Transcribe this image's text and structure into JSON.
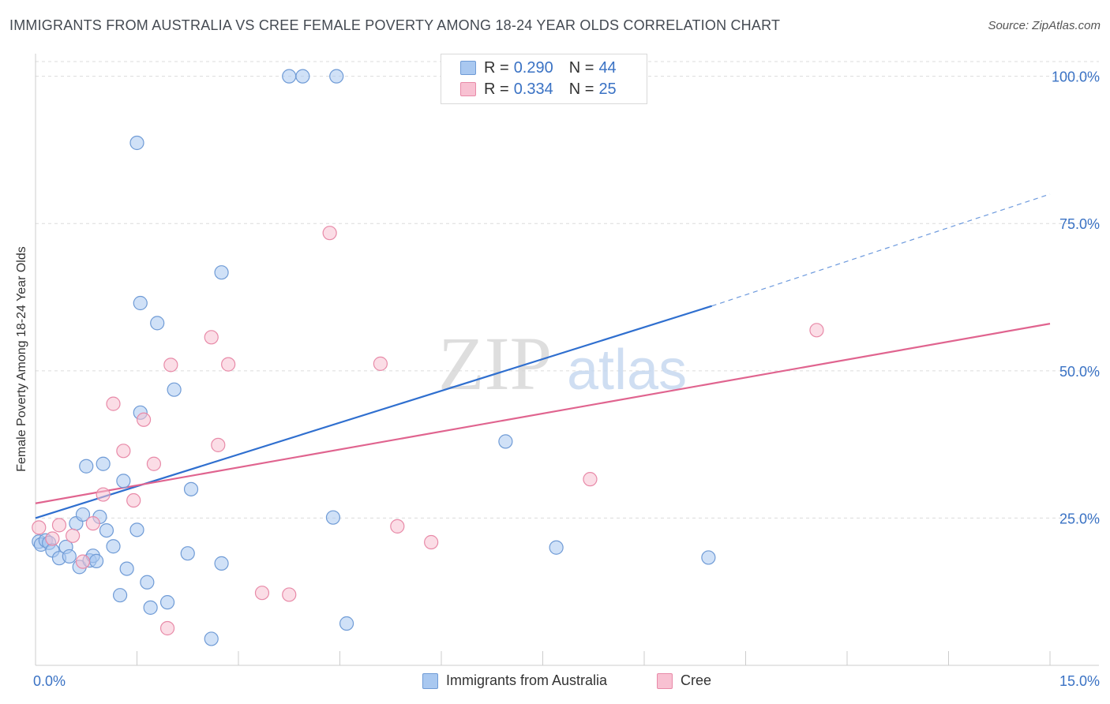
{
  "header": {
    "title": "IMMIGRANTS FROM AUSTRALIA VS CREE FEMALE POVERTY AMONG 18-24 YEAR OLDS CORRELATION CHART",
    "source": "Source: ZipAtlas.com"
  },
  "watermark": {
    "zip": "ZIP",
    "atlas": "atlas"
  },
  "legend": {
    "series1": {
      "r_label": "R =",
      "r_value": "0.290",
      "n_label": "N =",
      "n_value": "44"
    },
    "series2": {
      "r_label": "R =",
      "r_value": "0.334",
      "n_label": "N =",
      "n_value": "25"
    }
  },
  "colors": {
    "blue_fill": "#a9c8f0",
    "blue_stroke": "#6f9bd6",
    "blue_line": "#2f6fcf",
    "pink_fill": "#f8c1d2",
    "pink_stroke": "#e88aa8",
    "pink_line": "#e0648f",
    "tick_text": "#3a72c4",
    "grid": "#dcdcdc"
  },
  "chart_data": {
    "type": "scatter",
    "title": "IMMIGRANTS FROM AUSTRALIA VS CREE FEMALE POVERTY AMONG 18-24 YEAR OLDS CORRELATION CHART",
    "xlabel": "",
    "ylabel": "Female Poverty Among 18-24 Year Olds",
    "xlim": [
      0,
      15
    ],
    "ylim": [
      0,
      102.5
    ],
    "x_tick_labels": [
      "0.0%",
      "15.0%"
    ],
    "y_ticks": [
      25,
      50,
      75,
      100
    ],
    "y_tick_labels": [
      "25.0%",
      "50.0%",
      "75.0%",
      "100.0%"
    ],
    "grid": true,
    "legend_position": "bottom",
    "series": [
      {
        "name": "Immigrants from Australia",
        "color": "#a9c8f0",
        "r": 0.29,
        "n": 44,
        "trend": {
          "x0": 0,
          "y0": 25.0,
          "x1": 10.0,
          "y1": 61.0,
          "dashed_to_x": 15,
          "dashed_to_y": 80.0
        },
        "points": [
          [
            0.05,
            21.0
          ],
          [
            0.08,
            20.5
          ],
          [
            0.15,
            21.2
          ],
          [
            0.2,
            20.8
          ],
          [
            0.25,
            19.5
          ],
          [
            0.35,
            18.2
          ],
          [
            0.45,
            20.1
          ],
          [
            0.5,
            18.5
          ],
          [
            0.6,
            24.1
          ],
          [
            0.65,
            16.7
          ],
          [
            0.7,
            25.6
          ],
          [
            0.75,
            33.8
          ],
          [
            0.8,
            17.8
          ],
          [
            0.85,
            18.6
          ],
          [
            0.9,
            17.7
          ],
          [
            1.0,
            34.2
          ],
          [
            1.05,
            22.9
          ],
          [
            1.15,
            20.2
          ],
          [
            1.25,
            11.9
          ],
          [
            1.35,
            16.4
          ],
          [
            1.5,
            88.7
          ],
          [
            1.55,
            61.5
          ],
          [
            1.65,
            14.1
          ],
          [
            1.7,
            9.8
          ],
          [
            1.8,
            58.1
          ],
          [
            1.95,
            10.7
          ],
          [
            2.05,
            46.8
          ],
          [
            2.3,
            29.9
          ],
          [
            2.25,
            19.0
          ],
          [
            2.75,
            66.7
          ],
          [
            2.75,
            17.3
          ],
          [
            3.75,
            100.0
          ],
          [
            3.95,
            100.0
          ],
          [
            4.45,
            100.0
          ],
          [
            4.4,
            25.1
          ],
          [
            4.6,
            7.1
          ],
          [
            6.95,
            38.0
          ],
          [
            7.7,
            20.0
          ],
          [
            9.95,
            18.3
          ],
          [
            2.6,
            4.5
          ],
          [
            1.55,
            42.9
          ],
          [
            1.3,
            31.3
          ],
          [
            1.5,
            23.0
          ],
          [
            0.95,
            25.2
          ]
        ]
      },
      {
        "name": "Cree",
        "color": "#f8c1d2",
        "r": 0.334,
        "n": 25,
        "trend": {
          "x0": 0,
          "y0": 27.5,
          "x1": 15,
          "y1": 58.0
        },
        "points": [
          [
            0.05,
            23.4
          ],
          [
            0.25,
            21.5
          ],
          [
            0.35,
            23.8
          ],
          [
            0.55,
            22.0
          ],
          [
            0.7,
            17.6
          ],
          [
            0.85,
            24.1
          ],
          [
            1.0,
            29.0
          ],
          [
            1.15,
            44.4
          ],
          [
            1.3,
            36.4
          ],
          [
            1.45,
            28.0
          ],
          [
            1.6,
            41.7
          ],
          [
            1.75,
            34.2
          ],
          [
            1.95,
            6.3
          ],
          [
            2.0,
            51.0
          ],
          [
            2.6,
            55.7
          ],
          [
            2.7,
            37.4
          ],
          [
            2.85,
            51.1
          ],
          [
            3.35,
            12.3
          ],
          [
            3.75,
            12.0
          ],
          [
            4.35,
            73.4
          ],
          [
            5.1,
            51.2
          ],
          [
            5.35,
            23.6
          ],
          [
            5.85,
            20.9
          ],
          [
            8.2,
            31.6
          ],
          [
            11.55,
            56.9
          ]
        ]
      }
    ]
  },
  "bottom_legend": {
    "series1": "Immigrants from Australia",
    "series2": "Cree"
  }
}
